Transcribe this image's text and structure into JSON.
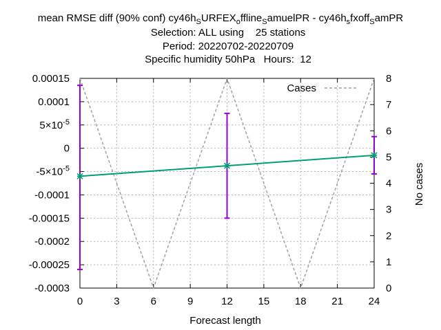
{
  "chart_data": {
    "type": "line",
    "title_lines": [
      "mean RMSE diff (90% conf) cy46h_SURFEX_offline_SamuelPR - cy46h_sfxoff_SamPR",
      "Selection: ALL using    25 stations",
      "Period: 20220702-20220709",
      "Specific humidity 50hPa   Hours:  12"
    ],
    "title_rich": [
      {
        "t": "mean RMSE diff (90% conf) cy46h"
      },
      {
        "t": "S",
        "sub": true
      },
      {
        "t": "URFEX"
      },
      {
        "t": "o",
        "sub": true
      },
      {
        "t": "ffline"
      },
      {
        "t": "S",
        "sub": true
      },
      {
        "t": "amuelPR - cy46h"
      },
      {
        "t": "s",
        "sub": true
      },
      {
        "t": "fxoff"
      },
      {
        "t": "S",
        "sub": true
      },
      {
        "t": "amPR"
      }
    ],
    "xlabel": "Forecast length",
    "ylabel_right": "No cases",
    "x_ticks": [
      "0",
      "3",
      "6",
      "9",
      "12",
      "15",
      "18",
      "21",
      "24"
    ],
    "xlim": [
      0,
      24
    ],
    "ylim": [
      -0.0003,
      0.00015
    ],
    "y_ticks": [
      {
        "v": 0.00015,
        "label": "0.00015"
      },
      {
        "v": 0.0001,
        "label": "0.0001"
      },
      {
        "v": 5e-05,
        "label": "5×10",
        "exp": "-5"
      },
      {
        "v": 0,
        "label": "0"
      },
      {
        "v": -5e-05,
        "label": "-5×10",
        "exp": "-5"
      },
      {
        "v": -0.0001,
        "label": "-0.0001"
      },
      {
        "v": -0.00015,
        "label": "-0.00015"
      },
      {
        "v": -0.0002,
        "label": "-0.0002"
      },
      {
        "v": -0.00025,
        "label": "-0.00025"
      },
      {
        "v": -0.0003,
        "label": "-0.0003"
      }
    ],
    "y2lim": [
      0,
      8
    ],
    "y2_ticks": [
      "0",
      "1",
      "2",
      "3",
      "4",
      "5",
      "6",
      "7",
      "8"
    ],
    "grid": true,
    "legend_position": "top-right",
    "series": [
      {
        "name": "",
        "kind": "line-points",
        "color": "#009e73",
        "marker": "x-star",
        "x": [
          0,
          12,
          24
        ],
        "y": [
          -6e-05,
          -3.75e-05,
          -1.5e-05
        ]
      },
      {
        "name": "",
        "kind": "errorbars",
        "color": "#9400d3",
        "x": [
          0,
          12,
          24
        ],
        "low": [
          -0.00026,
          -0.00015,
          -5.5e-05
        ],
        "high": [
          0.000135,
          7.5e-05,
          2.5e-05
        ]
      },
      {
        "name": "Cases",
        "kind": "line",
        "axis": "y2",
        "color": "#a0a0a0",
        "dash": true,
        "x": [
          0,
          6,
          12,
          18,
          24
        ],
        "y": [
          8,
          0,
          8,
          0,
          8
        ]
      }
    ]
  }
}
